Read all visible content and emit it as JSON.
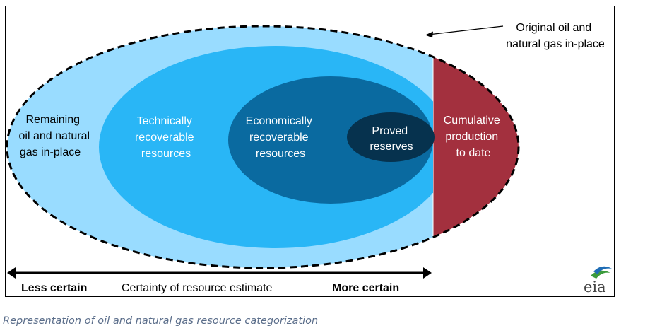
{
  "diagram": {
    "original_label": [
      "Original oil and",
      "natural gas in-place"
    ],
    "remaining_label": [
      "Remaining",
      "oil and natural",
      "gas in-place"
    ],
    "technical_label": [
      "Technically",
      "recoverable",
      "resources"
    ],
    "economic_label": [
      "Economically",
      "recoverable",
      "resources"
    ],
    "proved_label": [
      "Proved",
      "reserves"
    ],
    "cumulative_label": [
      "Cumulative",
      "production",
      "to date"
    ],
    "axis": {
      "left": "Less certain",
      "middle": "Certainty of resource estimate",
      "right": "More certain"
    },
    "logo_text": "eia",
    "colors": {
      "outer": "#99dcff",
      "technical": "#29b6f6",
      "economic": "#0a6aa0",
      "proved": "#06324e",
      "cumulative": "#a3303e"
    }
  },
  "caption": "Representation of oil and natural gas resource categorization"
}
